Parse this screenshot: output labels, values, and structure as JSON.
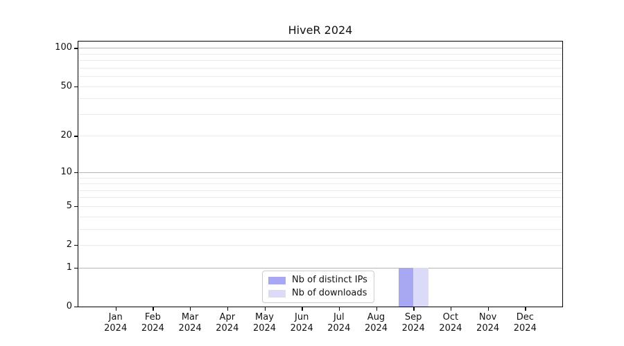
{
  "chart_data": {
    "type": "bar",
    "title": "HiveR 2024",
    "categories": [
      "Jan",
      "Feb",
      "Mar",
      "Apr",
      "May",
      "Jun",
      "Jul",
      "Aug",
      "Sep",
      "Oct",
      "Nov",
      "Dec"
    ],
    "category_year": "2024",
    "series": [
      {
        "name": "Nb of distinct IPs",
        "color": "#a7a7f2",
        "values": [
          0,
          0,
          0,
          0,
          0,
          0,
          0,
          0,
          1,
          0,
          0,
          0
        ]
      },
      {
        "name": "Nb of downloads",
        "color": "#dbdbf9",
        "values": [
          0,
          0,
          0,
          0,
          0,
          0,
          0,
          0,
          1,
          0,
          0,
          0
        ]
      }
    ],
    "xlabel": "",
    "ylabel": "",
    "y_scale": "log1p",
    "ylim": [
      0,
      112
    ],
    "y_ticks": [
      0,
      1,
      2,
      5,
      10,
      20,
      50,
      100
    ],
    "y_major_gridlines": [
      1,
      10,
      100
    ],
    "y_minor_gridlines": [
      2,
      3,
      4,
      5,
      6,
      7,
      8,
      9,
      20,
      30,
      40,
      50,
      60,
      70,
      80,
      90
    ],
    "grid": true,
    "legend_position": "lower-center-inside",
    "colors": {
      "axis": "#000000",
      "major_grid": "#b4b4b4",
      "minor_grid": "#eaeaea",
      "background": "#ffffff"
    }
  }
}
